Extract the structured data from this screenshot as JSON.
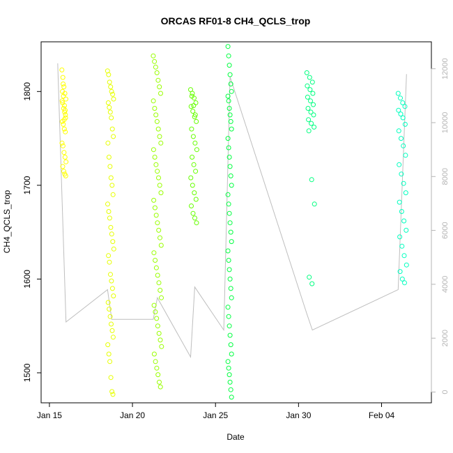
{
  "chart_data": {
    "type": "scatter",
    "title": "ORCAS RF01-8 CH4_QCLS_trop",
    "xlabel": "Date",
    "ylabel": "CH4_QCLS_trop",
    "x_ticks": [
      "Jan 15",
      "Jan 20",
      "Jan 25",
      "Jan 30",
      "Feb 04"
    ],
    "y_ticks": [
      "1500",
      "1600",
      "1700",
      "1800"
    ],
    "y2_ticks": [
      "0",
      "2000",
      "4000",
      "6000",
      "8000",
      "10000",
      "12000"
    ],
    "xlim": [
      "2016-01-14T12:00",
      "2016-02-07T00:00"
    ],
    "ylim": [
      1468,
      1853
    ],
    "y2lim": [
      -400,
      13000
    ],
    "x_scale": {
      "Jan 15": "2016-01-15",
      "Jan 20": "2016-01-20",
      "Jan 25": "2016-01-25",
      "Jan 30": "2016-01-30",
      "Feb 04": "2016-02-04"
    },
    "grid": false,
    "series": [
      {
        "color": "#ffff00",
        "x_range": [
          "2016-01-15T18:00",
          "2016-01-16T00:00"
        ],
        "points_y": [
          1823,
          1815,
          1805,
          1798,
          1792,
          1788,
          1782,
          1778,
          1772,
          1768,
          1765,
          1760,
          1757,
          1745,
          1742,
          1735,
          1730,
          1725,
          1720,
          1715,
          1712,
          1710,
          1800,
          1795,
          1785,
          1775,
          1790,
          1808,
          1770,
          1780
        ]
      },
      {
        "color": "#e6ff00",
        "x_range": [
          "2016-01-18T12:00",
          "2016-01-18T21:00"
        ],
        "points_y": [
          1822,
          1818,
          1810,
          1805,
          1800,
          1797,
          1792,
          1788,
          1783,
          1778,
          1772,
          1760,
          1752,
          1745,
          1730,
          1720,
          1708,
          1700,
          1690,
          1680,
          1672,
          1665,
          1655,
          1648,
          1640,
          1632,
          1625,
          1618,
          1605,
          1598,
          1590,
          1582,
          1575,
          1568,
          1560,
          1552,
          1545,
          1538,
          1530,
          1520,
          1512,
          1495,
          1480,
          1477
        ]
      },
      {
        "color": "#99ff00",
        "x_range": [
          "2016-01-21T06:00",
          "2016-01-21T18:00"
        ],
        "points_y": [
          1838,
          1832,
          1826,
          1820,
          1812,
          1805,
          1798,
          1790,
          1782,
          1775,
          1768,
          1760,
          1752,
          1745,
          1738,
          1730,
          1722,
          1715,
          1708,
          1700,
          1692,
          1684,
          1676,
          1668,
          1660,
          1652,
          1644,
          1636,
          1628,
          1620,
          1612,
          1604,
          1596,
          1588,
          1580,
          1572,
          1565,
          1558,
          1550,
          1542,
          1535,
          1528,
          1520,
          1512,
          1505,
          1498,
          1490,
          1485
        ]
      },
      {
        "color": "#66ff00",
        "x_range": [
          "2016-01-23T12:00",
          "2016-01-23T21:00"
        ],
        "points_y": [
          1802,
          1798,
          1793,
          1788,
          1784,
          1779,
          1773,
          1768,
          1760,
          1752,
          1745,
          1738,
          1730,
          1722,
          1715,
          1708,
          1700,
          1692,
          1685,
          1678,
          1670,
          1665,
          1660,
          1795,
          1785,
          1775
        ]
      },
      {
        "color": "#00ff40",
        "x_range": [
          "2016-01-25T18:00",
          "2016-01-26T00:00"
        ],
        "points_y": [
          1848,
          1838,
          1828,
          1818,
          1808,
          1800,
          1795,
          1790,
          1782,
          1775,
          1768,
          1760,
          1750,
          1740,
          1730,
          1720,
          1710,
          1700,
          1690,
          1680,
          1670,
          1660,
          1650,
          1640,
          1630,
          1620,
          1610,
          1600,
          1590,
          1580,
          1570,
          1560,
          1550,
          1540,
          1530,
          1520,
          1512,
          1505,
          1498,
          1490,
          1482,
          1474
        ]
      },
      {
        "color": "#00ff80",
        "x_range": [
          "2016-01-30T12:00",
          "2016-01-30T23:00"
        ],
        "points_y": [
          1820,
          1815,
          1810,
          1806,
          1802,
          1798,
          1794,
          1790,
          1786,
          1782,
          1778,
          1775,
          1770,
          1766,
          1762,
          1758,
          1706,
          1680,
          1602,
          1595
        ]
      },
      {
        "color": "#00ffbf",
        "x_range": [
          "2016-02-05T00:00",
          "2016-02-05T12:00"
        ],
        "points_y": [
          1798,
          1793,
          1788,
          1784,
          1780,
          1776,
          1772,
          1765,
          1758,
          1750,
          1742,
          1732,
          1722,
          1712,
          1702,
          1692,
          1682,
          1672,
          1662,
          1652,
          1645,
          1635,
          1625,
          1615,
          1608,
          1600,
          1596
        ]
      }
    ],
    "altitude_track": {
      "color": "#bebebe",
      "axis": "right",
      "x": [
        "2016-01-15T12:00",
        "2016-01-16T00:00",
        "2016-01-18T12:00",
        "2016-01-18T18:00",
        "2016-01-21T06:00",
        "2016-01-21T12:00",
        "2016-01-23T12:00",
        "2016-01-23T18:00",
        "2016-01-25T12:00",
        "2016-01-25T21:00",
        "2016-01-30T12:00",
        "2016-01-30T20:00",
        "2016-02-05T00:00",
        "2016-02-05T12:00"
      ],
      "y": [
        12200,
        2600,
        3800,
        2700,
        2700,
        3500,
        1300,
        3900,
        2300,
        11700,
        2900,
        2300,
        3800,
        11800
      ]
    }
  }
}
